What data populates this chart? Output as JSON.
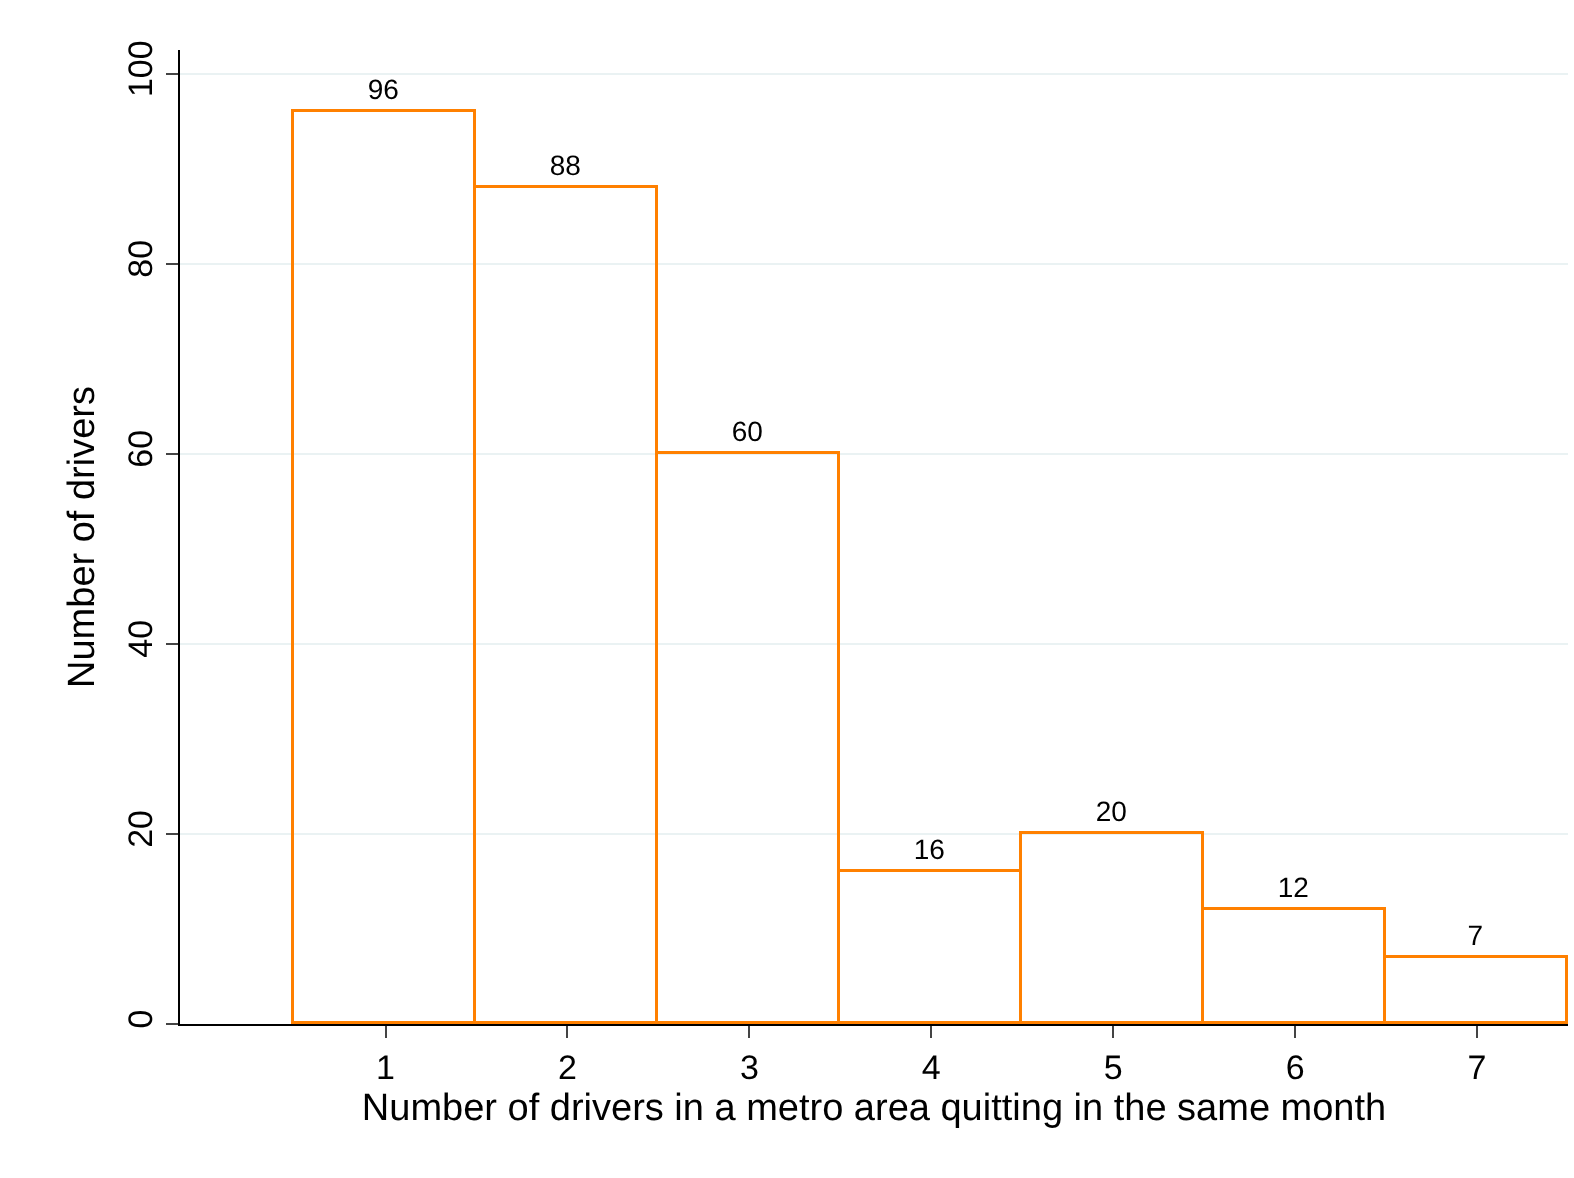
{
  "chart_data": {
    "type": "histogram",
    "xlabel": "Number of drivers in a metro area quitting in the same month",
    "ylabel": "Number of drivers",
    "bins": [
      0.5,
      1.5,
      2.5,
      3.5,
      4.5,
      5.5,
      6.5,
      7.5
    ],
    "values": [
      96,
      88,
      60,
      16,
      20,
      12,
      7
    ],
    "color": "#ff8000",
    "data_labels": true,
    "xlim": [
      -0.13,
      7.5
    ],
    "xticks": [
      1,
      2,
      3,
      4,
      5,
      6,
      7
    ],
    "ylim": [
      0,
      102.5
    ],
    "yticks": [
      0,
      20,
      40,
      60,
      80,
      100
    ],
    "grid": "y"
  }
}
